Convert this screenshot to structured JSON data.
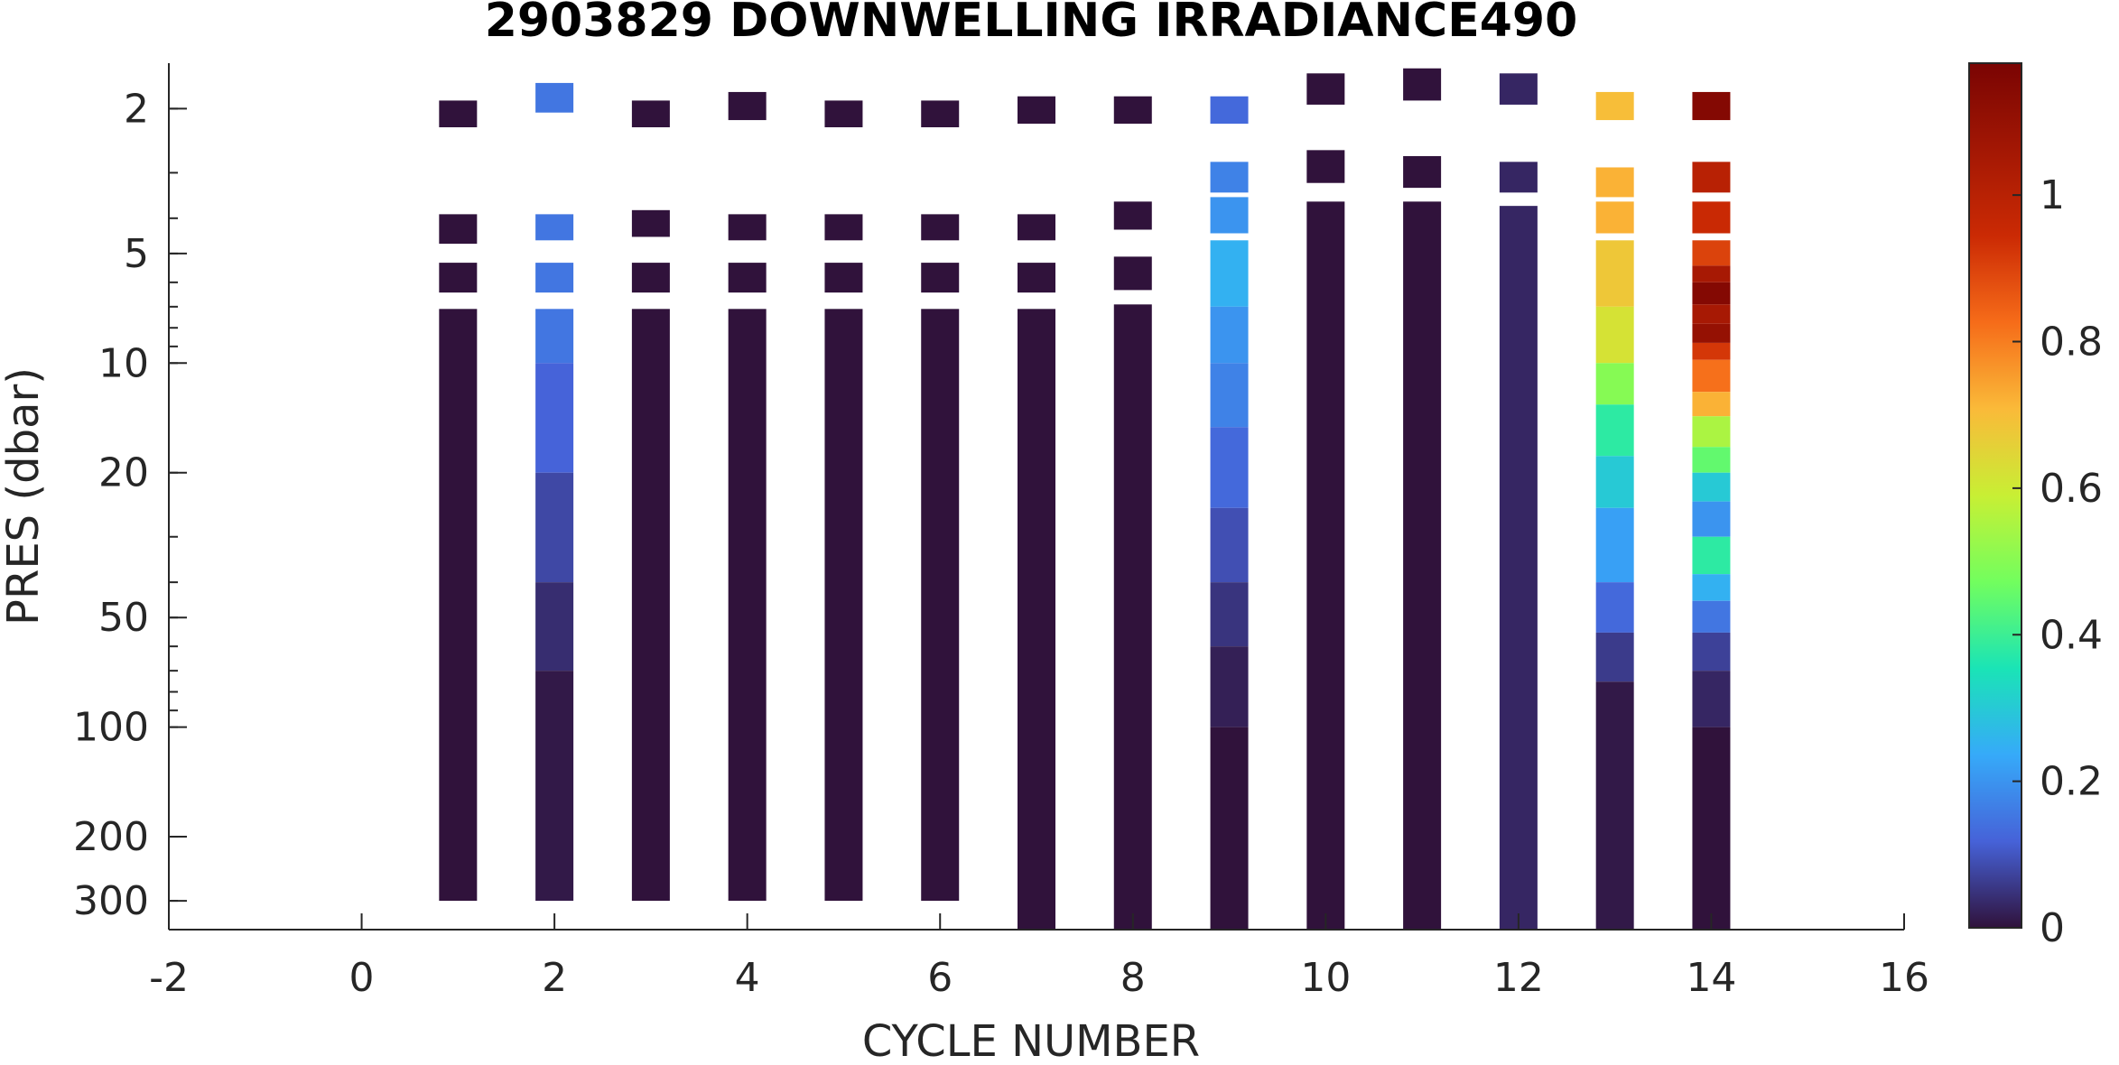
{
  "chart_data": {
    "type": "heatmap",
    "title": "2903829  DOWNWELLING IRRADIANCE490",
    "xlabel": "CYCLE NUMBER",
    "ylabel": "PRES (dbar)",
    "xlim": [
      -2,
      16
    ],
    "ylim": [
      1.5,
      360
    ],
    "y_scale": "log",
    "y_reversed": true,
    "x_ticks": [
      "-2",
      "0",
      "2",
      "4",
      "6",
      "8",
      "10",
      "12",
      "14",
      "16"
    ],
    "y_ticks": [
      "2",
      "5",
      "10",
      "20",
      "50",
      "100",
      "200",
      "300"
    ],
    "colorbar": {
      "colormap": "turbo",
      "range": [
        0,
        1.18
      ],
      "ticks": [
        "0",
        "0.2",
        "0.4",
        "0.6",
        "0.8",
        "1"
      ]
    },
    "grid": false,
    "background": "#ffffff",
    "columns": [
      {
        "cycle": 1,
        "bins": [
          [
            1.9,
            2.25,
            0
          ],
          [
            3.9,
            4.7,
            0
          ],
          [
            5.3,
            6.4,
            0
          ],
          [
            7.1,
            300,
            0
          ]
        ]
      },
      {
        "cycle": 2,
        "bins": [
          [
            1.7,
            2.05,
            0.15
          ],
          [
            3.9,
            4.6,
            0.15
          ],
          [
            5.3,
            6.4,
            0.15
          ],
          [
            7.1,
            10,
            0.15
          ],
          [
            10,
            20,
            0.12
          ],
          [
            20,
            40,
            0.08
          ],
          [
            40,
            70,
            0.04
          ],
          [
            70,
            300,
            0.01
          ]
        ]
      },
      {
        "cycle": 3,
        "bins": [
          [
            1.9,
            2.25,
            0
          ],
          [
            3.8,
            4.5,
            0
          ],
          [
            5.3,
            6.4,
            0
          ],
          [
            7.1,
            300,
            0
          ]
        ]
      },
      {
        "cycle": 4,
        "bins": [
          [
            1.8,
            2.15,
            0
          ],
          [
            3.9,
            4.6,
            0
          ],
          [
            5.3,
            6.4,
            0
          ],
          [
            7.1,
            300,
            0
          ]
        ]
      },
      {
        "cycle": 5,
        "bins": [
          [
            1.9,
            2.25,
            0
          ],
          [
            3.9,
            4.6,
            0
          ],
          [
            5.3,
            6.4,
            0
          ],
          [
            7.1,
            300,
            0
          ]
        ]
      },
      {
        "cycle": 6,
        "bins": [
          [
            1.9,
            2.25,
            0
          ],
          [
            3.9,
            4.6,
            0
          ],
          [
            5.3,
            6.4,
            0
          ],
          [
            7.1,
            300,
            0
          ]
        ]
      },
      {
        "cycle": 7,
        "bins": [
          [
            1.85,
            2.2,
            0
          ],
          [
            3.9,
            4.6,
            0
          ],
          [
            5.3,
            6.4,
            0
          ],
          [
            7.1,
            360,
            0
          ]
        ]
      },
      {
        "cycle": 8,
        "bins": [
          [
            1.85,
            2.2,
            0
          ],
          [
            3.6,
            4.3,
            0
          ],
          [
            5.1,
            6.3,
            0
          ],
          [
            6.9,
            360,
            0
          ]
        ]
      },
      {
        "cycle": 9,
        "bins": [
          [
            1.85,
            2.2,
            0.13
          ],
          [
            2.8,
            3.4,
            0.17
          ],
          [
            3.5,
            4.4,
            0.2
          ],
          [
            4.6,
            7.0,
            0.25
          ],
          [
            7.0,
            10,
            0.2
          ],
          [
            10,
            15,
            0.17
          ],
          [
            15,
            25,
            0.13
          ],
          [
            25,
            40,
            0.09
          ],
          [
            40,
            60,
            0.05
          ],
          [
            60,
            100,
            0.02
          ],
          [
            100,
            360,
            0
          ]
        ]
      },
      {
        "cycle": 10,
        "bins": [
          [
            1.6,
            1.95,
            0
          ],
          [
            2.6,
            3.2,
            0
          ],
          [
            3.6,
            360,
            0
          ]
        ]
      },
      {
        "cycle": 11,
        "bins": [
          [
            1.55,
            1.9,
            0
          ],
          [
            2.7,
            3.3,
            0
          ],
          [
            3.6,
            360,
            0
          ]
        ]
      },
      {
        "cycle": 12,
        "bins": [
          [
            1.6,
            1.95,
            0.03
          ],
          [
            2.8,
            3.4,
            0.03
          ],
          [
            3.7,
            360,
            0.03
          ]
        ]
      },
      {
        "cycle": 13,
        "bins": [
          [
            1.8,
            2.15,
            0.7
          ],
          [
            2.9,
            3.5,
            0.72
          ],
          [
            3.6,
            4.4,
            0.72
          ],
          [
            4.6,
            7.0,
            0.68
          ],
          [
            7.0,
            10,
            0.62
          ],
          [
            10,
            13,
            0.5
          ],
          [
            13,
            18,
            0.38
          ],
          [
            18,
            25,
            0.3
          ],
          [
            25,
            40,
            0.22
          ],
          [
            40,
            55,
            0.13
          ],
          [
            55,
            75,
            0.06
          ],
          [
            75,
            360,
            0.01
          ]
        ]
      },
      {
        "cycle": 14,
        "bins": [
          [
            1.8,
            2.15,
            1.15
          ],
          [
            2.8,
            3.4,
            1.0
          ],
          [
            3.6,
            4.4,
            0.95
          ],
          [
            4.6,
            5.4,
            0.9
          ],
          [
            5.4,
            6.0,
            1.05
          ],
          [
            6.0,
            6.9,
            1.15
          ],
          [
            6.9,
            7.8,
            1.05
          ],
          [
            7.8,
            8.8,
            1.1
          ],
          [
            8.8,
            9.8,
            0.92
          ],
          [
            9.8,
            12,
            0.82
          ],
          [
            12,
            14,
            0.72
          ],
          [
            14,
            17,
            0.55
          ],
          [
            17,
            20,
            0.45
          ],
          [
            20,
            24,
            0.3
          ],
          [
            24,
            30,
            0.2
          ],
          [
            30,
            38,
            0.38
          ],
          [
            38,
            45,
            0.25
          ],
          [
            45,
            55,
            0.15
          ],
          [
            55,
            70,
            0.07
          ],
          [
            70,
            100,
            0.03
          ],
          [
            100,
            360,
            0
          ]
        ]
      }
    ]
  }
}
